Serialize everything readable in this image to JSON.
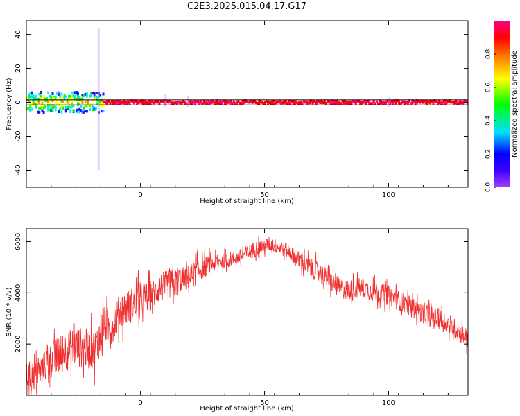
{
  "title": "C2E3.2025.015.04.17.G17",
  "colors": {
    "snr_line": "#f03030",
    "band_line": "#000000",
    "colorbar": [
      "#a040ff",
      "#0000ff",
      "#00e0ff",
      "#00ff00",
      "#ffff00",
      "#ff8000",
      "#ff0000",
      "#ff0080"
    ]
  },
  "chart_data": [
    {
      "type": "heatmap",
      "xlabel": "Height of straight line (km)",
      "ylabel": "Frequency (Hz)",
      "xlim": [
        -46,
        132
      ],
      "ylim": [
        -50,
        48
      ],
      "xticks": [
        0,
        50,
        100
      ],
      "yticks": [
        -40,
        -20,
        0,
        20,
        40
      ],
      "grid": false,
      "band": {
        "upper_hz": 1.5,
        "lower_hz": -1.5
      },
      "colorbar": {
        "label": "Normalized spectral amplitude",
        "range": [
          0.0,
          1.0
        ],
        "ticks": [
          "0.0",
          "0.2",
          "0.4",
          "0.6",
          "0.8"
        ],
        "tick_values": [
          0.0,
          0.2,
          0.4,
          0.6,
          0.8
        ]
      },
      "segments": [
        {
          "x_start": -46,
          "x_end": -15,
          "freq_spread_hz": 6,
          "peak_level": 0.5,
          "note": "noisy multi-color"
        },
        {
          "x_start": -15,
          "x_end": 132,
          "freq_spread_hz": 1,
          "peak_level": 1.0,
          "note": "narrow red line near 0 Hz"
        }
      ],
      "spikes": [
        {
          "x": -17,
          "f_min": -40,
          "f_max": 44
        },
        {
          "x": 10,
          "f_min": -3,
          "f_max": 5
        },
        {
          "x": 19,
          "f_min": -3,
          "f_max": 4
        },
        {
          "x": 100,
          "f_min": -3,
          "f_max": 3
        }
      ]
    },
    {
      "type": "line",
      "xlabel": "Height of straight line (km)",
      "ylabel": "SNR (10 * v/v)",
      "xlim": [
        -46,
        132
      ],
      "ylim": [
        0,
        6500
      ],
      "xticks": [
        0,
        50,
        100
      ],
      "yticks": [
        2000,
        4000,
        6000
      ],
      "grid": false,
      "series": [
        {
          "x": [
            -46,
            -42,
            -38,
            -34,
            -30,
            -26,
            -22,
            -18,
            -15,
            -12,
            -8,
            -4,
            0,
            4,
            8,
            12,
            16,
            20,
            24,
            28,
            32,
            36,
            40,
            44,
            48,
            52,
            56,
            60,
            64,
            68,
            72,
            76,
            80,
            84,
            88,
            92,
            96,
            100,
            104,
            108,
            112,
            116,
            120,
            124,
            128,
            132
          ],
          "y": [
            700,
            800,
            1200,
            1500,
            1700,
            1900,
            1800,
            1800,
            2800,
            2600,
            3300,
            3500,
            3700,
            3900,
            4200,
            4300,
            4500,
            4600,
            4900,
            5100,
            5200,
            5300,
            5400,
            5600,
            5800,
            5900,
            5800,
            5600,
            5300,
            5000,
            4800,
            4500,
            4200,
            4100,
            4200,
            4100,
            4000,
            3900,
            3700,
            3500,
            3300,
            3100,
            3000,
            2800,
            2500,
            2200
          ],
          "noise_amplitude": [
            600,
            600,
            700,
            800,
            800,
            800,
            800,
            800,
            700,
            700,
            700,
            700,
            600,
            600,
            600,
            600,
            500,
            500,
            400,
            300,
            300,
            300,
            300,
            300,
            300,
            300,
            300,
            300,
            400,
            400,
            400,
            400,
            400,
            400,
            400,
            400,
            400,
            400,
            400,
            400,
            400,
            400,
            400,
            400,
            400,
            400
          ]
        }
      ]
    }
  ]
}
